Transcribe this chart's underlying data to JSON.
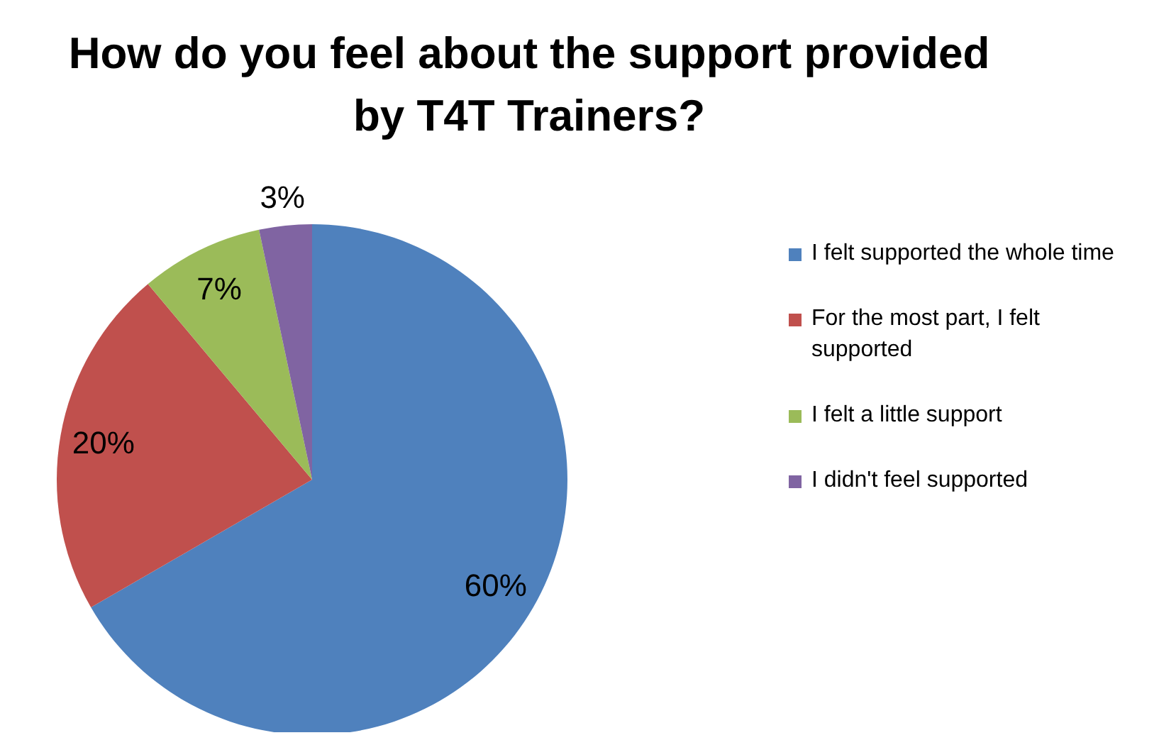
{
  "chart_data": {
    "type": "pie",
    "title": "How do you feel about the support provided by T4T Trainers?",
    "categories": [
      "I felt supported the whole time",
      "For the most part, I felt supported",
      "I felt a little support",
      "I didn't feel supported"
    ],
    "values": [
      60,
      20,
      7,
      3
    ],
    "colors": [
      "#4f81bd",
      "#c0504d",
      "#9bbb59",
      "#8064a2"
    ],
    "value_labels": [
      "60%",
      "20%",
      "7%",
      "3%"
    ],
    "legend": "right"
  }
}
